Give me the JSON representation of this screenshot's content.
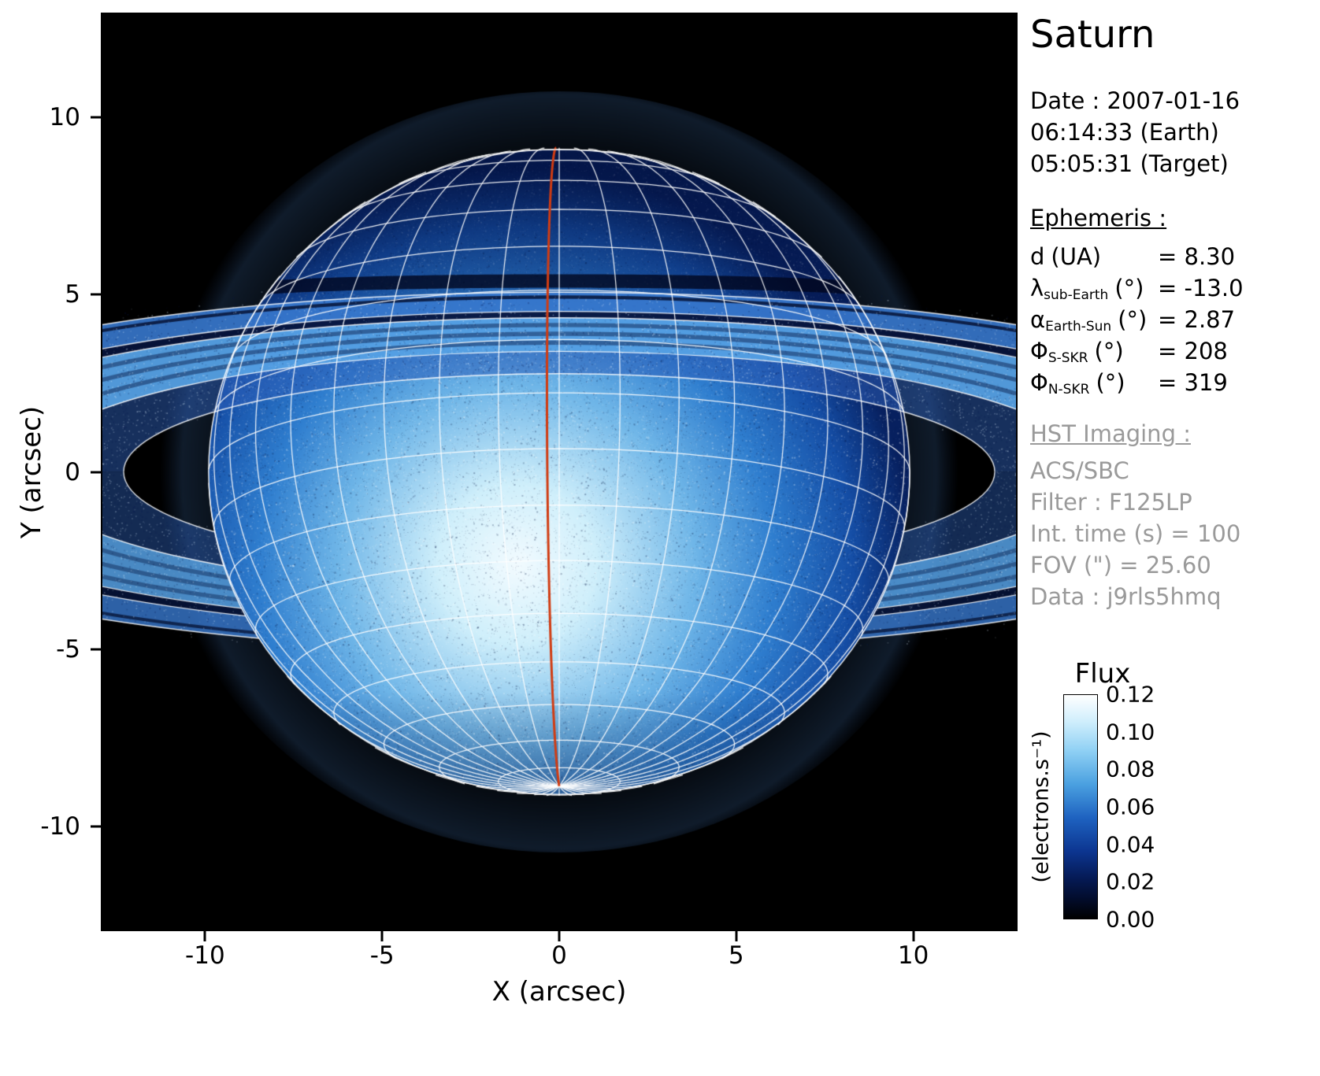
{
  "chart_data": {
    "type": "heatmap",
    "title": "Saturn",
    "xlabel": "X (arcsec)",
    "ylabel": "Y (arcsec)",
    "xlim": [
      -12.9,
      12.9
    ],
    "ylim": [
      -12.9,
      12.9
    ],
    "x_ticks": [
      -10,
      -5,
      0,
      5,
      10
    ],
    "y_ticks": [
      10,
      5,
      0,
      -5,
      -10
    ],
    "grid": false,
    "legend": "none",
    "colorbar": {
      "title": "Flux",
      "unit": "(electrons.s⁻¹)",
      "ticks": [
        "0.12",
        "0.10",
        "0.08",
        "0.06",
        "0.04",
        "0.02",
        "0.00"
      ],
      "min": 0.0,
      "max": 0.12,
      "colormap": [
        "#000000",
        "#051a55",
        "#0c3590",
        "#1e62c0",
        "#4aa0e0",
        "#8fd0f4",
        "#cfeefc",
        "#ffffff"
      ]
    },
    "planet": {
      "name": "Saturn",
      "center_arcsec": [
        0,
        0
      ],
      "equatorial_radius_arcsec": 9.9,
      "polar_radius_arcsec": 9.09,
      "sub_earth_latitude_deg": -13.0,
      "grid_lat_step_deg": 10,
      "grid_lon_step_deg": 10,
      "grid_color": "#ffffff",
      "central_meridian_color": "#d13c12"
    },
    "rings": {
      "tilt_ratio": 0.225,
      "boundaries_arcsec": [
        12.3,
        15.1,
        19.3,
        20.1,
        22.5
      ],
      "bands": [
        {
          "name": "C ring",
          "a_in": 12.3,
          "a_out": 15.1
        },
        {
          "name": "B ring",
          "a_in": 15.1,
          "a_out": 19.3
        },
        {
          "name": "Cassini division",
          "a_in": 19.3,
          "a_out": 20.1
        },
        {
          "name": "A ring",
          "a_in": 20.1,
          "a_out": 22.5
        }
      ]
    }
  },
  "sidebar": {
    "title": "Saturn",
    "date_lines": [
      "Date : 2007-01-16",
      "06:14:33 (Earth)",
      "05:05:31 (Target)"
    ],
    "ephemeris": {
      "heading": "Ephemeris :",
      "rows": [
        {
          "sym": "d",
          "sub": "",
          "unit": "(UA)",
          "value": "= 8.30"
        },
        {
          "sym": "λ",
          "sub": "sub-Earth",
          "unit": "(°)",
          "value": "= -13.0"
        },
        {
          "sym": "α",
          "sub": "Earth-Sun",
          "unit": "(°)",
          "value": "= 2.87"
        },
        {
          "sym": "Φ",
          "sub": "S-SKR",
          "unit": "(°)",
          "value": "= 208"
        },
        {
          "sym": "Φ",
          "sub": "N-SKR",
          "unit": "(°)",
          "value": "= 319"
        }
      ]
    },
    "hst": {
      "heading": "HST Imaging :",
      "lines": [
        "ACS/SBC",
        "Filter : F125LP",
        "Int. time (s) = 100",
        "FOV (\") = 25.60",
        "Data : j9rls5hmq"
      ]
    }
  }
}
